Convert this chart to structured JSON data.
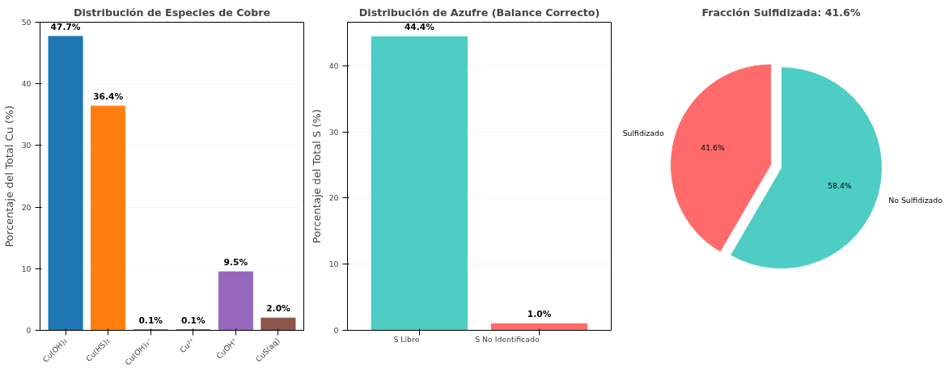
{
  "chart_data": [
    {
      "type": "bar",
      "title": "Distribución de Especies de Cobre",
      "ylabel": "Porcentaje del Total Cu (%)",
      "categories": [
        "Cu(OH)₂",
        "Cu(HS)₂",
        "Cu(OH)₃⁻",
        "Cu²⁺",
        "CuOH⁺",
        "CuS(aq)"
      ],
      "values": [
        47.7,
        36.4,
        0.1,
        0.1,
        9.5,
        2.0
      ],
      "colors": [
        "#1f77b4",
        "#ff7f0e",
        "#2ca02c",
        "#d62728",
        "#9467bd",
        "#8c564b"
      ],
      "value_labels": [
        "47.7%",
        "36.4%",
        "0.1%",
        "0.1%",
        "9.5%",
        "2.0%"
      ],
      "ylim": [
        0,
        50
      ],
      "yticks": [
        0,
        10,
        20,
        30,
        40,
        50
      ],
      "grid": "y"
    },
    {
      "type": "bar",
      "title": "Distribución de Azufre (Balance Correcto)",
      "ylabel": "Porcentaje del Total S (%)",
      "categories": [
        "S Libre",
        "S No Identificado"
      ],
      "values": [
        44.4,
        1.0
      ],
      "colors": [
        "#4ecdc4",
        "#ff6b6b"
      ],
      "value_labels": [
        "44.4%",
        "1.0%"
      ],
      "ylim": [
        0,
        46.6
      ],
      "yticks": [
        0,
        10,
        20,
        30,
        40
      ],
      "grid": "y"
    },
    {
      "type": "pie",
      "title": "Fracción Sulfidizada: 41.6%",
      "categories": [
        "Sulfidizado",
        "No Sulfidizado"
      ],
      "values": [
        41.6,
        58.4
      ],
      "colors": [
        "#ff6b6b",
        "#4ecdc4"
      ],
      "value_labels": [
        "41.6%",
        "58.4%"
      ]
    }
  ]
}
